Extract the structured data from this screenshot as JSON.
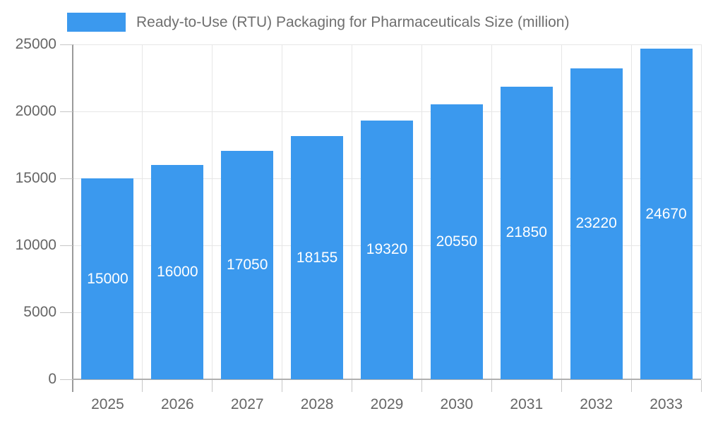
{
  "chart_data": {
    "type": "bar",
    "title": "Ready-to-Use (RTU) Packaging for Pharmaceuticals Size (million)",
    "categories": [
      "2025",
      "2026",
      "2027",
      "2028",
      "2029",
      "2030",
      "2031",
      "2032",
      "2033"
    ],
    "values": [
      15000,
      16000,
      17050,
      18155,
      19320,
      20550,
      21850,
      23220,
      24670
    ],
    "yticks": [
      0,
      5000,
      10000,
      15000,
      20000,
      25000
    ],
    "ylim": [
      0,
      25000
    ],
    "xlabel": "",
    "ylabel": "",
    "grid": true,
    "legend_position": "top-left",
    "colors": {
      "bar": "#3b99ee",
      "bar_value_label": "#ffffff",
      "gridline": "#e6e6e6",
      "axis_line": "#9a9a9a",
      "axis_label": "#666666",
      "title_text": "#6f6f6f",
      "background": "#ffffff"
    }
  }
}
